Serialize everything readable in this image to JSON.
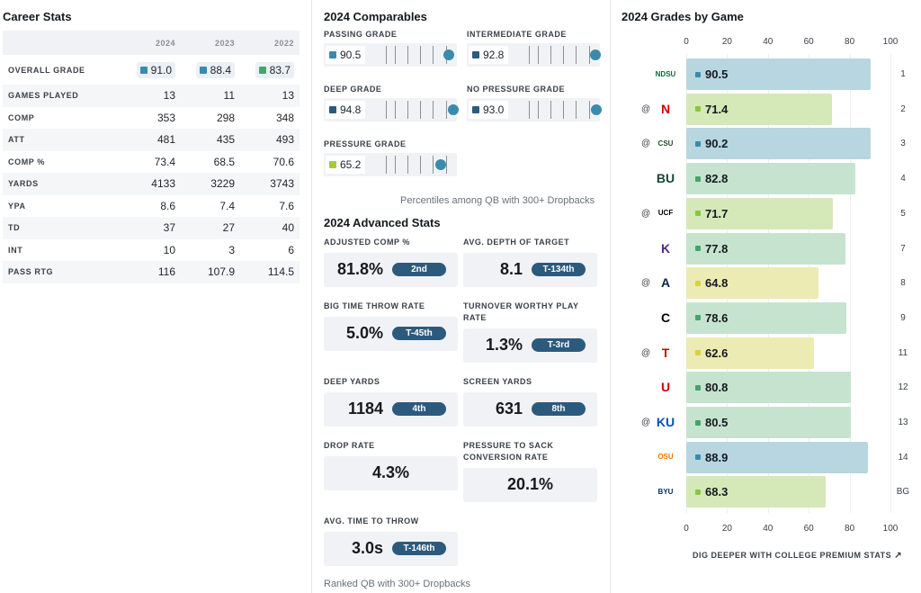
{
  "colors": {
    "grade_blue": "#3a8bab",
    "grade_dark_blue": "#2c5a7d",
    "grade_green": "#46a36b",
    "grade_light_green": "#8bc53f",
    "grade_yellow": "#d8d23c",
    "bar_blue": "#b7d6e0",
    "bar_green_light": "#d5e8b8",
    "bar_green": "#c6e3cf",
    "bar_yellow": "#ecebb3",
    "pill": "#2c5a7d"
  },
  "career": {
    "title": "Career Stats",
    "years": [
      "2024",
      "2023",
      "2022"
    ],
    "overall_label": "OVERALL GRADE",
    "overall": [
      {
        "value": "91.0",
        "color": "#3a8bab"
      },
      {
        "value": "88.4",
        "color": "#3a8bab"
      },
      {
        "value": "83.7",
        "color": "#46a36b"
      }
    ],
    "rows": [
      {
        "label": "GAMES PLAYED",
        "v": [
          "13",
          "11",
          "13"
        ]
      },
      {
        "label": "COMP",
        "v": [
          "353",
          "298",
          "348"
        ]
      },
      {
        "label": "ATT",
        "v": [
          "481",
          "435",
          "493"
        ]
      },
      {
        "label": "COMP %",
        "v": [
          "73.4",
          "68.5",
          "70.6"
        ]
      },
      {
        "label": "YARDS",
        "v": [
          "4133",
          "3229",
          "3743"
        ]
      },
      {
        "label": "YPA",
        "v": [
          "8.6",
          "7.4",
          "7.6"
        ]
      },
      {
        "label": "TD",
        "v": [
          "37",
          "27",
          "40"
        ]
      },
      {
        "label": "INT",
        "v": [
          "10",
          "3",
          "6"
        ]
      },
      {
        "label": "PASS RTG",
        "v": [
          "116",
          "107.9",
          "114.5"
        ]
      }
    ]
  },
  "comparables": {
    "title": "2024 Comparables",
    "items": [
      {
        "label": "PASSING GRADE",
        "value": "90.5",
        "color": "#3a8bab",
        "percentile": 0.93
      },
      {
        "label": "INTERMEDIATE GRADE",
        "value": "92.8",
        "color": "#2c5a7d",
        "percentile": 0.97
      },
      {
        "label": "DEEP GRADE",
        "value": "94.8",
        "color": "#2c5a7d",
        "percentile": 0.98
      },
      {
        "label": "NO PRESSURE GRADE",
        "value": "93.0",
        "color": "#2c5a7d",
        "percentile": 0.98
      },
      {
        "label": "PRESSURE GRADE",
        "value": "65.2",
        "color": "#a5c93a",
        "percentile": 0.83
      }
    ],
    "note": "Percentiles among QB with 300+ Dropbacks"
  },
  "advanced": {
    "title": "2024 Advanced Stats",
    "items": [
      {
        "label": "ADJUSTED COMP %",
        "value": "81.8%",
        "rank": "2nd"
      },
      {
        "label": "AVG. DEPTH OF TARGET",
        "value": "8.1",
        "rank": "T-134th"
      },
      {
        "label": "BIG TIME THROW RATE",
        "value": "5.0%",
        "rank": "T-45th"
      },
      {
        "label": "TURNOVER WORTHY PLAY RATE",
        "value": "1.3%",
        "rank": "T-3rd"
      },
      {
        "label": "DEEP YARDS",
        "value": "1184",
        "rank": "4th"
      },
      {
        "label": "SCREEN YARDS",
        "value": "631",
        "rank": "8th"
      },
      {
        "label": "DROP RATE",
        "value": "4.3%",
        "rank": ""
      },
      {
        "label": "PRESSURE TO SACK CONVERSION RATE",
        "value": "20.1%",
        "rank": ""
      },
      {
        "label": "AVG. TIME TO THROW",
        "value": "3.0s",
        "rank": "T-146th"
      }
    ],
    "note": "Ranked QB with 300+ Dropbacks"
  },
  "chart_data": {
    "type": "bar",
    "title": "2024 Grades by Game",
    "xlim": [
      0,
      100
    ],
    "ticks": [
      "0",
      "20",
      "40",
      "60",
      "80",
      "100"
    ],
    "games": [
      {
        "week": "1",
        "away": false,
        "value": 90.5,
        "label": "90.5",
        "logo": "NDSU",
        "logo_color": "#0a6b3a",
        "bar": "#b7d6e0",
        "dot": "#3a8bab"
      },
      {
        "week": "2",
        "away": true,
        "value": 71.4,
        "label": "71.4",
        "logo": "N",
        "logo_color": "#d00000",
        "bar": "#d5e8b8",
        "dot": "#8bc53f"
      },
      {
        "week": "3",
        "away": true,
        "value": 90.2,
        "label": "90.2",
        "logo": "CSU",
        "logo_color": "#1e4d2b",
        "bar": "#b7d6e0",
        "dot": "#3a8bab"
      },
      {
        "week": "4",
        "away": false,
        "value": 82.8,
        "label": "82.8",
        "logo": "BU",
        "logo_color": "#154734",
        "bar": "#c6e3cf",
        "dot": "#46a36b"
      },
      {
        "week": "5",
        "away": true,
        "value": 71.7,
        "label": "71.7",
        "logo": "UCF",
        "logo_color": "#000000",
        "bar": "#d5e8b8",
        "dot": "#8bc53f"
      },
      {
        "week": "7",
        "away": false,
        "value": 77.8,
        "label": "77.8",
        "logo": "K",
        "logo_color": "#512888",
        "bar": "#c6e3cf",
        "dot": "#46a36b"
      },
      {
        "week": "8",
        "away": true,
        "value": 64.8,
        "label": "64.8",
        "logo": "A",
        "logo_color": "#0c234b",
        "bar": "#ecebb3",
        "dot": "#d8d23c"
      },
      {
        "week": "9",
        "away": false,
        "value": 78.6,
        "label": "78.6",
        "logo": "C",
        "logo_color": "#000000",
        "bar": "#c6e3cf",
        "dot": "#46a36b"
      },
      {
        "week": "11",
        "away": true,
        "value": 62.6,
        "label": "62.6",
        "logo": "T",
        "logo_color": "#cc0000",
        "bar": "#ecebb3",
        "dot": "#d8d23c"
      },
      {
        "week": "12",
        "away": false,
        "value": 80.8,
        "label": "80.8",
        "logo": "U",
        "logo_color": "#cc0000",
        "bar": "#c6e3cf",
        "dot": "#46a36b"
      },
      {
        "week": "13",
        "away": true,
        "value": 80.5,
        "label": "80.5",
        "logo": "KU",
        "logo_color": "#0051ba",
        "bar": "#c6e3cf",
        "dot": "#46a36b"
      },
      {
        "week": "14",
        "away": false,
        "value": 88.9,
        "label": "88.9",
        "logo": "OSU",
        "logo_color": "#ff7300",
        "bar": "#b7d6e0",
        "dot": "#3a8bab"
      },
      {
        "week": "BG",
        "away": false,
        "value": 68.3,
        "label": "68.3",
        "logo": "BYU",
        "logo_color": "#002e5d",
        "bar": "#d5e8b8",
        "dot": "#8bc53f"
      }
    ],
    "away_marker": "@",
    "cta": "DIG DEEPER WITH COLLEGE PREMIUM STATS"
  }
}
